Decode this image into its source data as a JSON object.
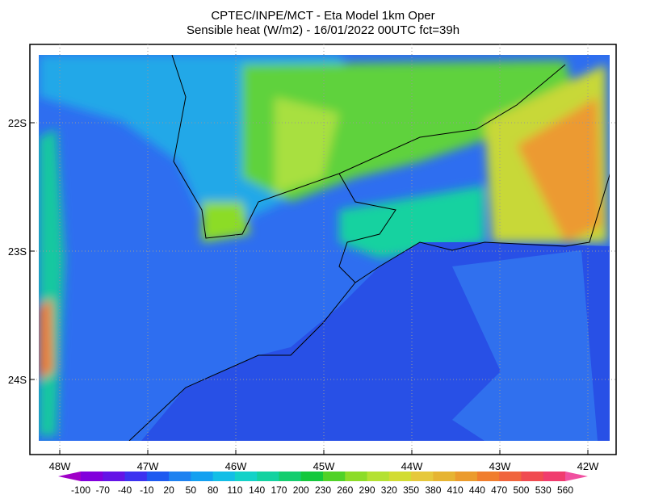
{
  "header": {
    "line1": "CPTEC/INPE/MCT -  Eta Model 1km Oper",
    "line2": "Sensible heat (W/m2) - 16/01/2022 00UTC fct=39h"
  },
  "latitude_labels": [
    "22S",
    "23S",
    "24S"
  ],
  "longitude_labels": [
    "48W",
    "47W",
    "46W",
    "45W",
    "44W",
    "43W",
    "42W"
  ],
  "colorbar": {
    "labels": [
      "-100",
      "-70",
      "-40",
      "-10",
      "20",
      "50",
      "80",
      "110",
      "140",
      "170",
      "200",
      "230",
      "260",
      "290",
      "320",
      "350",
      "380",
      "410",
      "440",
      "470",
      "500",
      "530",
      "560"
    ],
    "colors": [
      "#a000c8",
      "#8200dc",
      "#6414e6",
      "#3c32f0",
      "#1e5af0",
      "#1e82f0",
      "#14a0f0",
      "#14bee6",
      "#14d2c8",
      "#14d2a0",
      "#14cd6e",
      "#14c83c",
      "#50d228",
      "#8cdc28",
      "#b4e132",
      "#d2dc32",
      "#e6c83c",
      "#e6b432",
      "#eb9b2d",
      "#f07d2d",
      "#f0643c",
      "#f04b50",
      "#f03c6e",
      "#f050a0"
    ]
  }
}
